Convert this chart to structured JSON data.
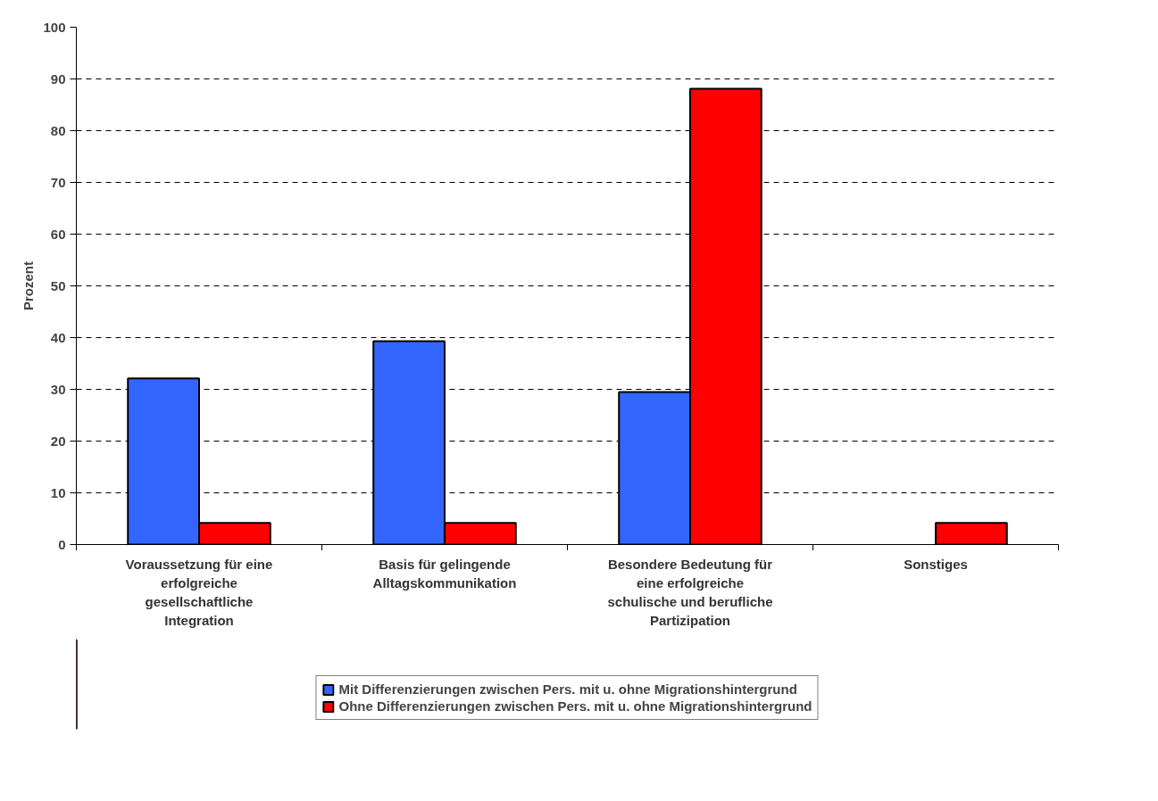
{
  "chart_data": {
    "type": "bar",
    "ylabel": "Prozent",
    "categories": [
      "Voraussetzung für eine erfolgreiche gesellschaftliche Integration",
      "Basis für gelingende Alltagskommunikation",
      "Besondere Bedeutung für eine erfolgreiche schulische und berufliche Partizipation",
      "Sonstiges"
    ],
    "series": [
      {
        "name": "Mit Differenzierungen zwischen Pers. mit u. ohne Migrationshintergrund",
        "color": "#3366ff",
        "values": [
          32.1,
          39.3,
          29.5,
          null
        ]
      },
      {
        "name": "Ohne Differenzierungen zwischen Pers. mit u. ohne Migrationshintergrund",
        "color": "#ff0000",
        "values": [
          4.2,
          4.2,
          88.1,
          4.2
        ]
      }
    ],
    "ylim": [
      0,
      100
    ],
    "yticks": [
      0,
      10,
      20,
      30,
      40,
      50,
      60,
      70,
      80,
      90,
      100
    ],
    "grid": "y",
    "legend": "bottom"
  }
}
